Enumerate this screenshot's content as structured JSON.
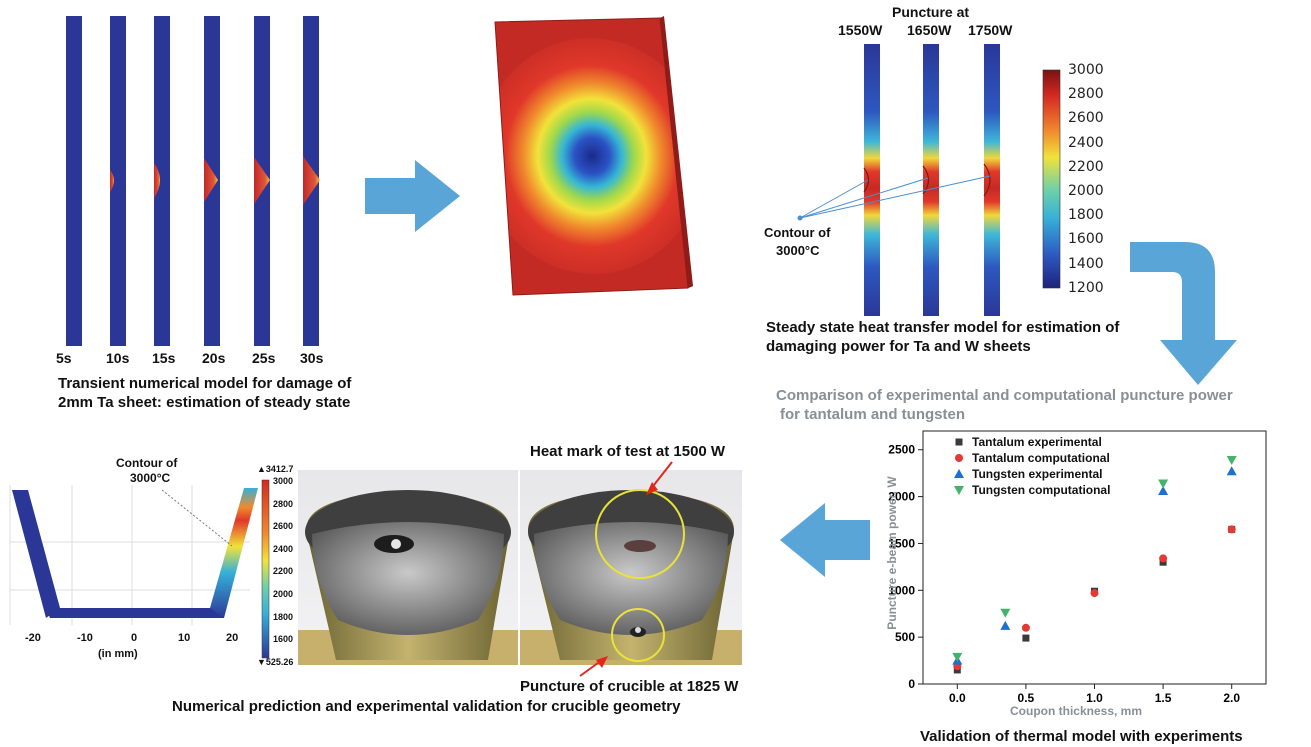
{
  "panel1": {
    "time_labels": [
      "5s",
      "10s",
      "15s",
      "20s",
      "25s",
      "30s"
    ],
    "caption_line1": "Transient numerical model for damage of",
    "caption_line2": "2mm Ta sheet: estimation of steady state"
  },
  "panel3": {
    "puncture_title": "Puncture at",
    "powers": [
      "1550W",
      "1650W",
      "1750W"
    ],
    "contour_label_line1": "Contour of",
    "contour_label_line2": "3000°C",
    "colorbar_ticks": [
      "3000",
      "2800",
      "2600",
      "2400",
      "2200",
      "2000",
      "1800",
      "1600",
      "1400",
      "1200"
    ],
    "caption_line1": "Steady state heat transfer model for estimation of",
    "caption_line2": "damaging power for Ta and W sheets"
  },
  "panel4": {
    "header_line1": "Comparison of experimental and computational puncture power",
    "header_line2": "for tantalum and tungsten",
    "caption": "Validation of thermal model with experiments",
    "chart_data": {
      "type": "scatter",
      "xlabel": "Coupon thickness, mm",
      "ylabel": "Puncture e-beam power, W",
      "xlim": [
        -0.25,
        2.25
      ],
      "ylim": [
        0,
        2700
      ],
      "x_ticks": [
        "0.0",
        "0.5",
        "1.0",
        "1.5",
        "2.0"
      ],
      "y_ticks": [
        "0",
        "500",
        "1000",
        "1500",
        "2000",
        "2500"
      ],
      "series": [
        {
          "name": "Tantalum experimental",
          "marker": "square",
          "color": "#3a3a3a",
          "x": [
            0,
            0.5,
            1.0,
            1.5,
            2.0
          ],
          "y": [
            150,
            490,
            990,
            1300,
            1650
          ]
        },
        {
          "name": "Tantalum computational",
          "marker": "circle",
          "color": "#e53935",
          "x": [
            0,
            0.5,
            1.0,
            1.5,
            2.0
          ],
          "y": [
            190,
            600,
            970,
            1340,
            1650
          ]
        },
        {
          "name": "Tungsten experimental",
          "marker": "triangle-up",
          "color": "#1e6fd0",
          "x": [
            0,
            0.35,
            1.5,
            2.0
          ],
          "y": [
            250,
            620,
            2060,
            2270
          ]
        },
        {
          "name": "Tungsten computational",
          "marker": "triangle-down",
          "color": "#43b36b",
          "x": [
            0,
            0.35,
            1.5,
            2.0
          ],
          "y": [
            290,
            760,
            2140,
            2390
          ]
        }
      ]
    }
  },
  "panel5": {
    "contour_label_line1": "Contour of",
    "contour_label_line2": "3000°C",
    "x_ticks": [
      "-20",
      "-10",
      "0",
      "10",
      "20"
    ],
    "x_unit": "(in mm)",
    "colorbar_max": "▲3412.7",
    "colorbar_min": "▼525.26",
    "colorbar_ticks": [
      "3000",
      "2800",
      "2600",
      "2400",
      "2200",
      "2000",
      "1800",
      "1600"
    ],
    "heat_mark_label": "Heat mark of test at 1500 W",
    "puncture_label": "Puncture of crucible at 1825 W",
    "caption": "Numerical prediction and experimental validation for crucible geometry"
  },
  "colors": {
    "sheet_blue": "#2b3797",
    "arrow_blue": "#5aa5d8",
    "slab_red": "#c72a22"
  }
}
